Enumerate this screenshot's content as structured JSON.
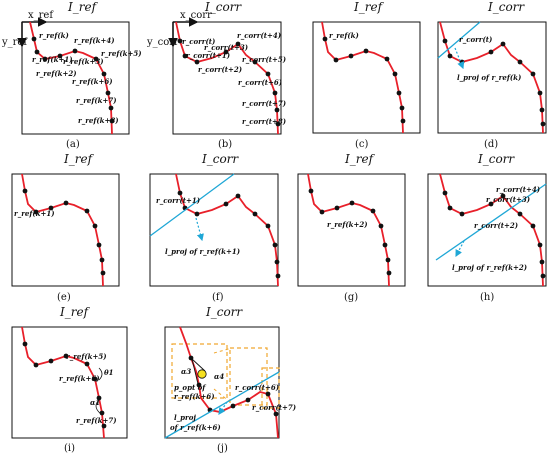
{
  "titles": {
    "ref": "I_ref",
    "corr": "I_corr"
  },
  "axes": {
    "x_ref": "x_ref",
    "y_ref": "y_ref",
    "x_corr": "x_corr",
    "y_corr": "y_corr"
  },
  "captions": [
    "(a)",
    "(b)",
    "(c)",
    "(d)",
    "(e)",
    "(f)",
    "(g)",
    "(h)",
    "(i)",
    "(j)"
  ],
  "labels": {
    "a": [
      "r_ref(k)",
      "r_ref(k+1)",
      "r_ref(k+2)",
      "r_ref(k+3)",
      "r_ref(k+4)",
      "r_ref(k+5)",
      "r_ref(k+6)",
      "r_ref(k+7)",
      "r_ref(k+8)"
    ],
    "b": [
      "r_corr(t)",
      "r_corr(t+1)",
      "r_corr(t+2)",
      "r_corr(t+3)",
      "r_corr(t+4)",
      "r_corr(t+5)",
      "r_corr(t+6)",
      "r_corr(t+7)",
      "r_corr(t+8)"
    ],
    "c": [
      "r_ref(k)"
    ],
    "d": [
      "r_corr(t)",
      "l_proj of r_ref(k)"
    ],
    "e": [
      "r_ref(k+1)"
    ],
    "f": [
      "r_corr(t+1)",
      "l_proj of r_ref(k+1)"
    ],
    "g": [
      "r_ref(k+2)"
    ],
    "h": [
      "r_corr(t+4)",
      "r_corr(t+3)",
      "r_corr(t+2)",
      "l_proj of r_ref(k+2)"
    ],
    "i": [
      "r_ref(k+5)",
      "r_ref(k+6)",
      "r_ref(k+7)",
      "θ1",
      "α1"
    ],
    "j": [
      "α3",
      "α4",
      "p_opt of",
      "r_ref(k+6)",
      "r_corr(t+6)",
      "r_corr(t+7)",
      "l_proj",
      "of r_ref(k+6)"
    ]
  },
  "colors": {
    "curve": "#e8202a",
    "point": "#111111",
    "proj_line": "#1fa7d6",
    "dashed_box": "#f0a830",
    "opt_point": "#f5e020"
  }
}
